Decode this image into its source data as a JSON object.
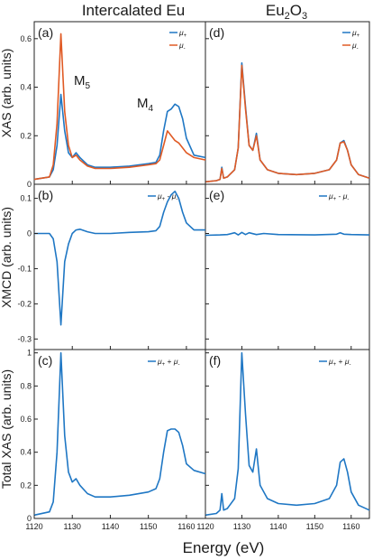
{
  "column_titles": {
    "left": "Intercalated Eu",
    "right_base": "Eu",
    "right_sub1": "2",
    "right_mid": "O",
    "right_sub2": "3"
  },
  "x_axis": {
    "label": "Energy (eV)",
    "left_ticks": [
      "1120",
      "1130",
      "1140",
      "1150",
      "1160"
    ],
    "right_ticks": [
      "1120",
      "1130",
      "1140",
      "1150",
      "1160"
    ]
  },
  "y_axes": {
    "row1": {
      "label": "XAS (arb. units)",
      "ticks": [
        "0",
        "0.2",
        "0.4",
        "0.6"
      ]
    },
    "row2": {
      "label": "XMCD (arb. units)",
      "ticks": [
        "-0.3",
        "-0.2",
        "-0.1",
        "0",
        "0.1"
      ]
    },
    "row3": {
      "label": "Total XAS (arb. units)",
      "ticks": [
        "0",
        "0.2",
        "0.4",
        "0.6",
        "0.8",
        "1"
      ]
    }
  },
  "panel_labels": {
    "a": "(a)",
    "b": "(b)",
    "c": "(c)",
    "d": "(d)",
    "e": "(e)",
    "f": "(f)"
  },
  "peak_labels": {
    "m5": "M",
    "m5_sub": "5",
    "m4": "M",
    "m4_sub": "4"
  },
  "legends": {
    "mu_plus": "μ",
    "mu_plus_sub": "+",
    "mu_minus": "μ",
    "mu_minus_sub": "-",
    "diff_a": "μ",
    "diff_a_sub": "+",
    "diff_op": " - ",
    "diff_b": "μ",
    "diff_b_sub": "-",
    "sum_a": "μ",
    "sum_a_sub": "+",
    "sum_op": " + ",
    "sum_b": "μ",
    "sum_b_sub": "-"
  },
  "colors": {
    "mu_plus": "#1f77c4",
    "mu_minus": "#e05a24",
    "xmcd": "#1f77c4",
    "total": "#1f77c4"
  },
  "chart_data": [
    {
      "type": "line",
      "panel": "a",
      "xlim": [
        1120,
        1165
      ],
      "ylim": [
        0,
        0.67
      ],
      "series": [
        {
          "name": "μ+",
          "x": [
            1120,
            1124,
            1125,
            1126,
            1127,
            1128,
            1129,
            1130,
            1131,
            1132,
            1134,
            1136,
            1140,
            1145,
            1150,
            1152,
            1153,
            1154,
            1155,
            1156,
            1157,
            1158,
            1159,
            1160,
            1162,
            1165
          ],
          "y": [
            0.02,
            0.03,
            0.06,
            0.16,
            0.37,
            0.22,
            0.13,
            0.11,
            0.13,
            0.11,
            0.08,
            0.07,
            0.07,
            0.075,
            0.085,
            0.09,
            0.12,
            0.22,
            0.3,
            0.31,
            0.33,
            0.32,
            0.27,
            0.19,
            0.12,
            0.11
          ]
        },
        {
          "name": "μ-",
          "x": [
            1120,
            1124,
            1125,
            1126,
            1127,
            1128,
            1129,
            1130,
            1131,
            1132,
            1134,
            1136,
            1140,
            1145,
            1150,
            1152,
            1153,
            1154,
            1155,
            1156,
            1157,
            1158,
            1159,
            1160,
            1162,
            1165
          ],
          "y": [
            0.02,
            0.03,
            0.08,
            0.25,
            0.62,
            0.3,
            0.16,
            0.11,
            0.12,
            0.1,
            0.075,
            0.065,
            0.065,
            0.07,
            0.08,
            0.085,
            0.1,
            0.16,
            0.22,
            0.2,
            0.18,
            0.17,
            0.15,
            0.13,
            0.11,
            0.1
          ]
        }
      ]
    },
    {
      "type": "line",
      "panel": "b",
      "xlim": [
        1120,
        1165
      ],
      "ylim": [
        -0.33,
        0.14
      ],
      "series": [
        {
          "name": "μ+ - μ-",
          "x": [
            1120,
            1124,
            1125,
            1126,
            1127,
            1128,
            1129,
            1130,
            1131,
            1132,
            1134,
            1136,
            1140,
            1145,
            1150,
            1152,
            1153,
            1154,
            1155,
            1156,
            1157,
            1158,
            1159,
            1160,
            1162,
            1165
          ],
          "y": [
            0,
            0,
            -0.015,
            -0.08,
            -0.26,
            -0.08,
            -0.03,
            0.0,
            0.01,
            0.012,
            0.005,
            0.0,
            0.0,
            0.003,
            0.005,
            0.008,
            0.02,
            0.06,
            0.09,
            0.11,
            0.12,
            0.1,
            0.06,
            0.03,
            0.01,
            0.01
          ]
        }
      ]
    },
    {
      "type": "line",
      "panel": "c",
      "xlim": [
        1120,
        1165
      ],
      "ylim": [
        0,
        1.02
      ],
      "series": [
        {
          "name": "μ+ + μ-",
          "x": [
            1120,
            1124,
            1125,
            1126,
            1127,
            1128,
            1129,
            1130,
            1131,
            1132,
            1134,
            1136,
            1140,
            1145,
            1150,
            1152,
            1153,
            1154,
            1155,
            1156,
            1157,
            1158,
            1159,
            1160,
            1162,
            1165
          ],
          "y": [
            0.02,
            0.04,
            0.1,
            0.4,
            1.0,
            0.5,
            0.28,
            0.22,
            0.24,
            0.2,
            0.15,
            0.13,
            0.13,
            0.14,
            0.16,
            0.18,
            0.24,
            0.4,
            0.53,
            0.54,
            0.54,
            0.52,
            0.44,
            0.33,
            0.29,
            0.27
          ]
        }
      ]
    },
    {
      "type": "line",
      "panel": "d",
      "xlim": [
        1120,
        1165
      ],
      "ylim": [
        0,
        0.67
      ],
      "series": [
        {
          "name": "μ+",
          "x": [
            1120,
            1123,
            1124,
            1124.5,
            1125,
            1126,
            1128,
            1129,
            1130,
            1131,
            1132,
            1133,
            1134,
            1135,
            1137,
            1140,
            1145,
            1150,
            1154,
            1156,
            1157,
            1158,
            1159,
            1160,
            1162,
            1165
          ],
          "y": [
            0.01,
            0.015,
            0.02,
            0.07,
            0.025,
            0.03,
            0.06,
            0.15,
            0.5,
            0.32,
            0.16,
            0.14,
            0.21,
            0.1,
            0.06,
            0.045,
            0.04,
            0.045,
            0.06,
            0.1,
            0.17,
            0.18,
            0.14,
            0.08,
            0.04,
            0.025
          ]
        },
        {
          "name": "μ-",
          "x": [
            1120,
            1123,
            1124,
            1124.5,
            1125,
            1126,
            1128,
            1129,
            1130,
            1131,
            1132,
            1133,
            1134,
            1135,
            1137,
            1140,
            1145,
            1150,
            1154,
            1156,
            1157,
            1158,
            1159,
            1160,
            1162,
            1165
          ],
          "y": [
            0.01,
            0.015,
            0.02,
            0.065,
            0.025,
            0.03,
            0.06,
            0.15,
            0.49,
            0.31,
            0.16,
            0.14,
            0.2,
            0.1,
            0.06,
            0.045,
            0.04,
            0.045,
            0.06,
            0.1,
            0.17,
            0.175,
            0.14,
            0.08,
            0.04,
            0.025
          ]
        }
      ]
    },
    {
      "type": "line",
      "panel": "e",
      "xlim": [
        1120,
        1165
      ],
      "ylim": [
        -0.33,
        0.14
      ],
      "series": [
        {
          "name": "μ+ - μ-",
          "x": [
            1120,
            1124,
            1126,
            1128,
            1129,
            1130,
            1131,
            1132,
            1134,
            1136,
            1140,
            1150,
            1156,
            1157,
            1158,
            1160,
            1165
          ],
          "y": [
            -0.005,
            -0.004,
            -0.003,
            0.002,
            -0.004,
            0.003,
            -0.003,
            0.002,
            -0.003,
            0.0,
            -0.003,
            -0.004,
            -0.002,
            0.002,
            -0.002,
            -0.003,
            -0.004
          ]
        }
      ]
    },
    {
      "type": "line",
      "panel": "f",
      "xlim": [
        1120,
        1165
      ],
      "ylim": [
        0,
        1.02
      ],
      "series": [
        {
          "name": "μ+ + μ-",
          "x": [
            1120,
            1123,
            1124,
            1124.5,
            1125,
            1126,
            1128,
            1129,
            1130,
            1131,
            1132,
            1133,
            1134,
            1135,
            1137,
            1140,
            1145,
            1150,
            1154,
            1156,
            1157,
            1158,
            1159,
            1160,
            1162,
            1165
          ],
          "y": [
            0.02,
            0.03,
            0.05,
            0.15,
            0.05,
            0.06,
            0.12,
            0.3,
            1.0,
            0.63,
            0.32,
            0.28,
            0.42,
            0.2,
            0.12,
            0.09,
            0.08,
            0.09,
            0.12,
            0.2,
            0.34,
            0.36,
            0.28,
            0.16,
            0.08,
            0.05
          ]
        }
      ]
    }
  ]
}
